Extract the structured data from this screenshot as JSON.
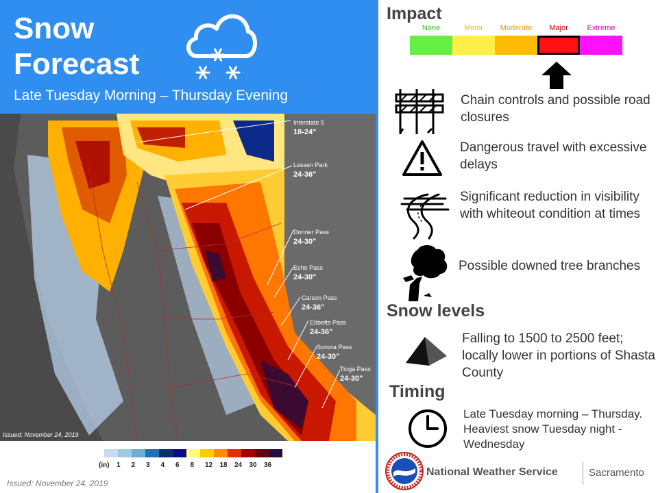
{
  "header": {
    "title": "Snow Forecast",
    "subtitle": "Late Tuesday Morning – Thursday Evening",
    "icon": "cloud-snow-icon"
  },
  "map": {
    "issued_label": "Issued: November 24, 2019",
    "locations": [
      {
        "name": "Interstate 5",
        "amount": "18-24\""
      },
      {
        "name": "Lassen Park",
        "amount": "24-36\""
      },
      {
        "name": "Donner Pass",
        "amount": "24-30\""
      },
      {
        "name": "Echo Pass",
        "amount": "24-30\""
      },
      {
        "name": "Carson Pass",
        "amount": "24-36\""
      },
      {
        "name": "Ebbetts Pass",
        "amount": "24-36\""
      },
      {
        "name": "Sonora Pass",
        "amount": "24-30\""
      },
      {
        "name": "Tioga Pass",
        "amount": "24-30\""
      }
    ]
  },
  "legend": {
    "unit": "(in)",
    "ticks": [
      "1",
      "2",
      "3",
      "4",
      "6",
      "8",
      "12",
      "18",
      "24",
      "30",
      "36"
    ],
    "colors": [
      "#c6dbef",
      "#9ecae1",
      "#6baed6",
      "#2171b5",
      "#08306b",
      "#0c0c8a",
      "#ffff80",
      "#ffcc00",
      "#ff8c00",
      "#e03000",
      "#a00000",
      "#600010",
      "#2a0a3a"
    ]
  },
  "issued_footer": "Issued: November 24, 2019",
  "impact": {
    "title": "Impact",
    "levels": [
      {
        "label": "None",
        "color": "#66ee44",
        "text_color": "#33bb22"
      },
      {
        "label": "Minor",
        "color": "#ffee44",
        "text_color": "#e8c400"
      },
      {
        "label": "Moderate",
        "color": "#ffbb00",
        "text_color": "#ee9900"
      },
      {
        "label": "Major",
        "color": "#ff1111",
        "text_color": "#cc0000"
      },
      {
        "label": "Extreme",
        "color": "#ff11ff",
        "text_color": "#dd00dd"
      }
    ],
    "selected": "Major",
    "items": [
      {
        "icon": "road-closure-icon",
        "text": "Chain controls and possible road closures"
      },
      {
        "icon": "warning-icon",
        "text": "Dangerous travel with excessive delays"
      },
      {
        "icon": "whiteout-road-icon",
        "text": "Significant reduction in visibility with whiteout condition at times"
      },
      {
        "icon": "downed-tree-icon",
        "text": "Possible downed tree branches"
      }
    ]
  },
  "snow_levels": {
    "title": "Snow levels",
    "icon": "mountain-icon",
    "text": "Falling to 1500 to 2500 feet; locally lower in portions of Shasta County"
  },
  "timing": {
    "title": "Timing",
    "icon": "clock-icon",
    "text": "Late Tuesday morning – Thursday. Heaviest snow Tuesday night - Wednesday"
  },
  "footer": {
    "org": "National Weather Service",
    "office": "Sacramento",
    "logo": "nws-logo"
  }
}
